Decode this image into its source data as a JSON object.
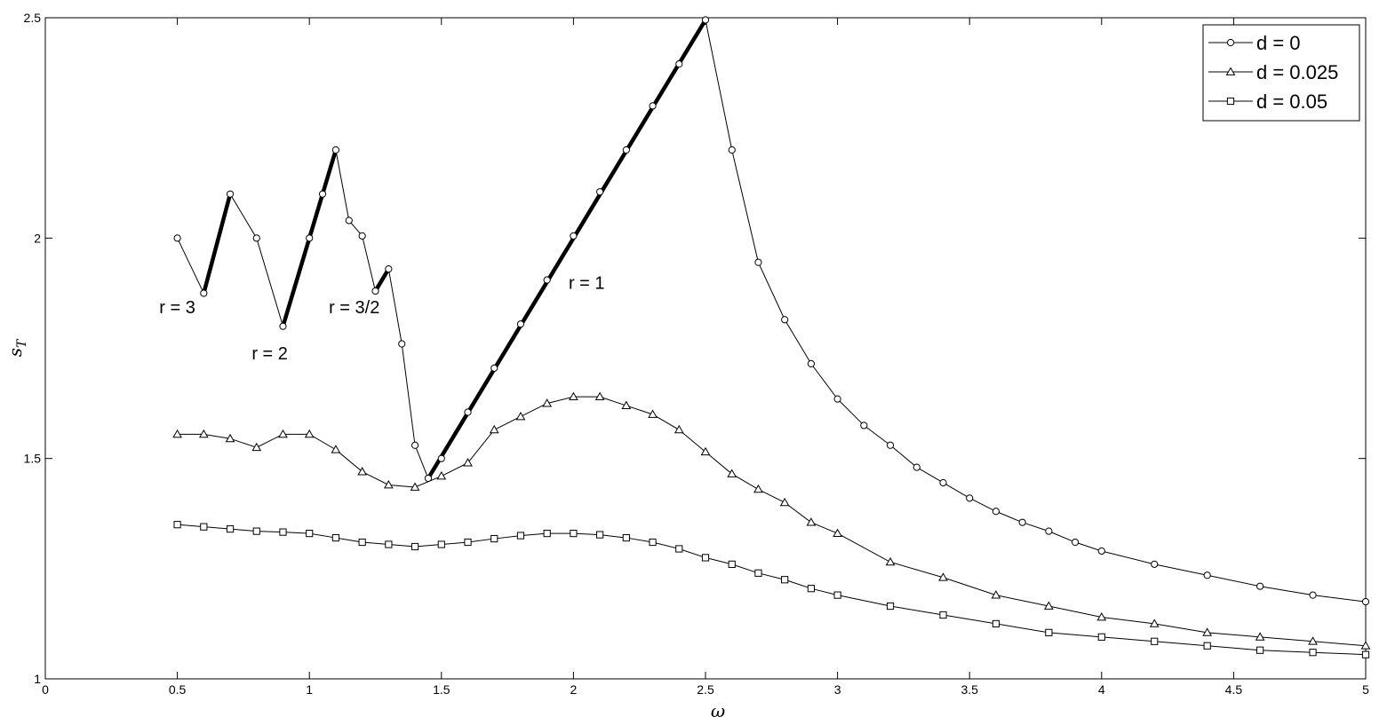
{
  "chart_data": {
    "type": "line",
    "xlabel": "ω",
    "ylabel": "s_T",
    "xlim": [
      0,
      5
    ],
    "ylim": [
      1,
      2.5
    ],
    "xticks": [
      "0",
      "0.5",
      "1",
      "1.5",
      "2",
      "2.5",
      "3",
      "3.5",
      "4",
      "4.5",
      "5"
    ],
    "yticks": [
      "1",
      "1.5",
      "2",
      "2.5"
    ],
    "grid": false,
    "legend_position": "top-right",
    "series": [
      {
        "name": "d = 0",
        "marker": "circle",
        "x": [
          0.5,
          0.6,
          0.7,
          0.8,
          0.9,
          1.0,
          1.05,
          1.1,
          1.15,
          1.2,
          1.25,
          1.3,
          1.35,
          1.4,
          1.45,
          1.5,
          1.6,
          1.7,
          1.8,
          1.9,
          2.0,
          2.1,
          2.2,
          2.3,
          2.4,
          2.5,
          2.6,
          2.7,
          2.8,
          2.9,
          3.0,
          3.1,
          3.2,
          3.3,
          3.4,
          3.5,
          3.6,
          3.7,
          3.8,
          3.9,
          4.0,
          4.2,
          4.4,
          4.6,
          4.8,
          5.0
        ],
        "y": [
          2.0,
          1.875,
          2.1,
          2.0,
          1.8,
          2.0,
          2.1,
          2.2,
          2.04,
          2.005,
          1.88,
          1.93,
          1.76,
          1.53,
          1.455,
          1.5,
          1.605,
          1.705,
          1.805,
          1.905,
          2.005,
          2.105,
          2.2,
          2.3,
          2.395,
          2.495,
          2.2,
          1.945,
          1.815,
          1.715,
          1.635,
          1.575,
          1.53,
          1.48,
          1.445,
          1.41,
          1.38,
          1.355,
          1.335,
          1.31,
          1.29,
          1.26,
          1.235,
          1.21,
          1.19,
          1.175
        ]
      },
      {
        "name": "d = 0.025",
        "marker": "triangle",
        "x": [
          0.5,
          0.6,
          0.7,
          0.8,
          0.9,
          1.0,
          1.1,
          1.2,
          1.3,
          1.4,
          1.5,
          1.6,
          1.7,
          1.8,
          1.9,
          2.0,
          2.1,
          2.2,
          2.3,
          2.4,
          2.5,
          2.6,
          2.7,
          2.8,
          2.9,
          3.0,
          3.2,
          3.4,
          3.6,
          3.8,
          4.0,
          4.2,
          4.4,
          4.6,
          4.8,
          5.0
        ],
        "y": [
          1.555,
          1.555,
          1.545,
          1.525,
          1.555,
          1.555,
          1.52,
          1.47,
          1.44,
          1.435,
          1.46,
          1.49,
          1.565,
          1.595,
          1.625,
          1.64,
          1.64,
          1.62,
          1.6,
          1.565,
          1.515,
          1.465,
          1.43,
          1.4,
          1.355,
          1.33,
          1.265,
          1.23,
          1.19,
          1.165,
          1.14,
          1.125,
          1.105,
          1.095,
          1.085,
          1.075
        ]
      },
      {
        "name": "d = 0.05",
        "marker": "square",
        "x": [
          0.5,
          0.6,
          0.7,
          0.8,
          0.9,
          1.0,
          1.1,
          1.2,
          1.3,
          1.4,
          1.5,
          1.6,
          1.7,
          1.8,
          1.9,
          2.0,
          2.1,
          2.2,
          2.3,
          2.4,
          2.5,
          2.6,
          2.7,
          2.8,
          2.9,
          3.0,
          3.2,
          3.4,
          3.6,
          3.8,
          4.0,
          4.2,
          4.4,
          4.6,
          4.8,
          5.0
        ],
        "y": [
          1.35,
          1.345,
          1.34,
          1.335,
          1.333,
          1.33,
          1.32,
          1.31,
          1.305,
          1.3,
          1.305,
          1.31,
          1.318,
          1.325,
          1.33,
          1.33,
          1.327,
          1.32,
          1.31,
          1.295,
          1.275,
          1.26,
          1.24,
          1.225,
          1.205,
          1.19,
          1.165,
          1.145,
          1.125,
          1.105,
          1.095,
          1.085,
          1.075,
          1.065,
          1.06,
          1.055
        ]
      }
    ],
    "highlight_segments": [
      {
        "x": [
          0.6,
          0.7
        ],
        "y": [
          1.875,
          2.1
        ]
      },
      {
        "x": [
          0.9,
          1.1
        ],
        "y": [
          1.8,
          2.2
        ]
      },
      {
        "x": [
          1.25,
          1.3
        ],
        "y": [
          1.88,
          1.93
        ]
      },
      {
        "x": [
          1.45,
          2.5
        ],
        "y": [
          1.455,
          2.495
        ]
      }
    ],
    "annotations": [
      {
        "text": "r = 3",
        "x": 0.5,
        "y": 1.83
      },
      {
        "text": "r = 2",
        "x": 0.85,
        "y": 1.725
      },
      {
        "text": "r = 3/2",
        "x": 1.17,
        "y": 1.83
      },
      {
        "text": "r = 1",
        "x": 2.05,
        "y": 1.885
      }
    ]
  }
}
